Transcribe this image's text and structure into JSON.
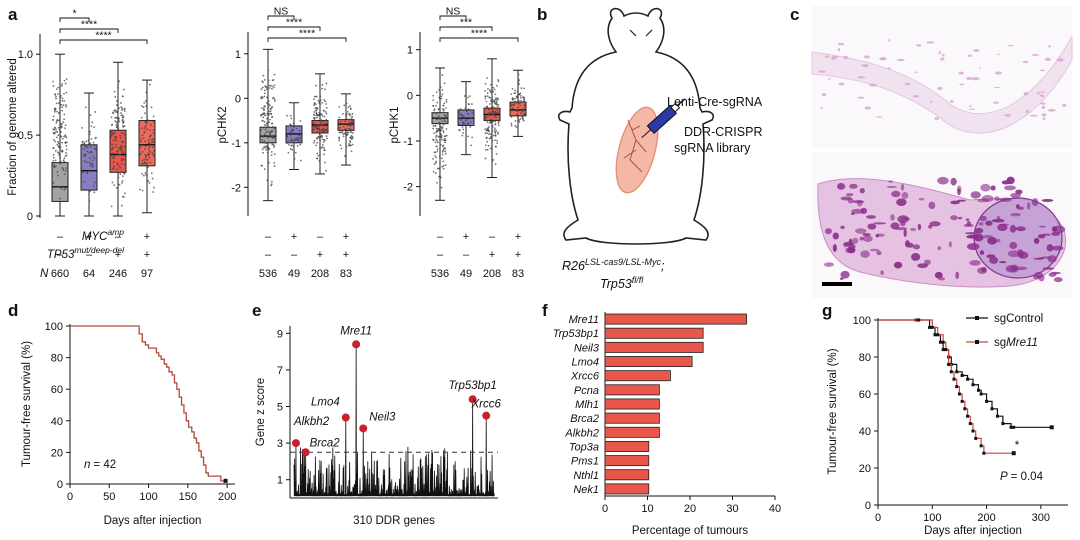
{
  "panels": {
    "a": "a",
    "b": "b",
    "c": "c",
    "d": "d",
    "e": "e",
    "f": "f",
    "g": "g"
  },
  "colors": {
    "box_gray": "#a3a3a3",
    "box_purple": "#8a7cc0",
    "box_red": "#e8574a",
    "box_lightred": "#ef6a5a",
    "survival_red": "#b04a3a",
    "bar_red": "#e8574a",
    "dot_red": "#c8202c",
    "mouse_fill": "#f5b7a6",
    "he_pink": "#d9a1d2",
    "he_dark": "#8a2c8a"
  },
  "panel_a": {
    "conditions": {
      "myc_label": "MYC",
      "myc_sup": "amp",
      "tp53_label": "TP53",
      "tp53_sup": "mut/deep-del",
      "n_label": "N",
      "plus": "+",
      "minus": "–"
    }
  },
  "panel_b": {
    "lenti_label": "Lenti-Cre-sgRNA",
    "library_line1": "DDR-CRISPR",
    "library_line2": "sgRNA library",
    "genotype_base1": "R26",
    "genotype_sup1": "LSL-cas9/LSL-Myc",
    "genotype_sep": ";",
    "genotype_base2": "Trp53",
    "genotype_sup2": "fl/fl"
  },
  "chart_data": [
    {
      "id": "a1",
      "type": "box",
      "ylabel": "Fraction of genome altered",
      "ylim": [
        0,
        1.1
      ],
      "yticks": [
        0,
        0.5,
        1.0
      ],
      "groups": [
        {
          "myc": "–",
          "tp53": "–",
          "n": "660",
          "median": 0.18,
          "q1": 0.09,
          "q3": 0.33,
          "whisker_low": 0.0,
          "whisker_high": 1.0
        },
        {
          "myc": "+",
          "tp53": "–",
          "n": "64",
          "median": 0.28,
          "q1": 0.16,
          "q3": 0.44,
          "whisker_low": 0.0,
          "whisker_high": 0.76
        },
        {
          "myc": "–",
          "tp53": "+",
          "n": "246",
          "median": 0.38,
          "q1": 0.27,
          "q3": 0.53,
          "whisker_low": 0.0,
          "whisker_high": 0.95
        },
        {
          "myc": "+",
          "tp53": "+",
          "n": "97",
          "median": 0.44,
          "q1": 0.31,
          "q3": 0.59,
          "whisker_low": 0.02,
          "whisker_high": 0.84
        }
      ],
      "comparisons": [
        {
          "from": 0,
          "to": 1,
          "label": "*"
        },
        {
          "from": 0,
          "to": 2,
          "label": "****"
        },
        {
          "from": 0,
          "to": 3,
          "label": "****"
        }
      ]
    },
    {
      "id": "a2",
      "type": "box",
      "ylabel": "pCHK2",
      "ylim": [
        -2.6,
        1.4
      ],
      "yticks": [
        -2,
        -1,
        0,
        1
      ],
      "groups": [
        {
          "myc": "–",
          "tp53": "–",
          "n": "536",
          "median": -0.85,
          "q1": -1.0,
          "q3": -0.65,
          "whisker_low": -2.3,
          "whisker_high": 1.1
        },
        {
          "myc": "+",
          "tp53": "–",
          "n": "49",
          "median": -0.8,
          "q1": -1.0,
          "q3": -0.62,
          "whisker_low": -1.6,
          "whisker_high": -0.1
        },
        {
          "myc": "–",
          "tp53": "+",
          "n": "208",
          "median": -0.6,
          "q1": -0.78,
          "q3": -0.5,
          "whisker_low": -1.7,
          "whisker_high": 0.55
        },
        {
          "myc": "+",
          "tp53": "+",
          "n": "83",
          "median": -0.58,
          "q1": -0.72,
          "q3": -0.48,
          "whisker_low": -1.5,
          "whisker_high": 0.1
        }
      ],
      "comparisons": [
        {
          "from": 0,
          "to": 1,
          "label": "NS"
        },
        {
          "from": 0,
          "to": 2,
          "label": "****"
        },
        {
          "from": 0,
          "to": 3,
          "label": "****"
        }
      ]
    },
    {
      "id": "a3",
      "type": "box",
      "ylabel": "pCHK1",
      "ylim": [
        -2.6,
        1.3
      ],
      "yticks": [
        -2,
        -1,
        0,
        1
      ],
      "groups": [
        {
          "myc": "–",
          "tp53": "–",
          "n": "536",
          "median": -0.5,
          "q1": -0.62,
          "q3": -0.38,
          "whisker_low": -2.3,
          "whisker_high": 0.6
        },
        {
          "myc": "+",
          "tp53": "–",
          "n": "49",
          "median": -0.5,
          "q1": -0.66,
          "q3": -0.32,
          "whisker_low": -1.3,
          "whisker_high": 0.3
        },
        {
          "myc": "–",
          "tp53": "+",
          "n": "208",
          "median": -0.42,
          "q1": -0.55,
          "q3": -0.28,
          "whisker_low": -1.8,
          "whisker_high": 0.8
        },
        {
          "myc": "+",
          "tp53": "+",
          "n": "83",
          "median": -0.32,
          "q1": -0.45,
          "q3": -0.15,
          "whisker_low": -0.9,
          "whisker_high": 0.55
        }
      ],
      "comparisons": [
        {
          "from": 0,
          "to": 1,
          "label": "NS"
        },
        {
          "from": 0,
          "to": 2,
          "label": "***"
        },
        {
          "from": 0,
          "to": 3,
          "label": "****"
        }
      ]
    },
    {
      "id": "d",
      "type": "line",
      "xlabel": "Days after injection",
      "ylabel": "Tumour-free survival (%)",
      "xlim": [
        0,
        210
      ],
      "xticks": [
        0,
        50,
        100,
        150,
        200
      ],
      "ylim": [
        0,
        100
      ],
      "yticks": [
        0,
        20,
        40,
        60,
        80,
        100
      ],
      "annotation_prefix": "n",
      "annotation_value": "= 42",
      "series": [
        {
          "x": [
            0,
            84,
            88,
            92,
            96,
            100,
            105,
            110,
            113,
            116,
            120,
            123,
            126,
            130,
            133,
            136,
            139,
            142,
            145,
            148,
            151,
            155,
            158,
            161,
            164,
            167,
            170,
            173,
            176,
            180,
            185,
            192,
            198
          ],
          "y": [
            100,
            100,
            95,
            90,
            88,
            86,
            86,
            83,
            81,
            79,
            76,
            74,
            71,
            69,
            64,
            60,
            55,
            50,
            45,
            40,
            36,
            33,
            29,
            26,
            21,
            17,
            12,
            7,
            5,
            5,
            5,
            2,
            2
          ],
          "censored_x": 198,
          "censored_y": 2
        }
      ]
    },
    {
      "id": "e",
      "type": "line",
      "xlabel": "310 DDR genes",
      "ylabel": "Gene z score",
      "ylim": [
        0,
        9.4
      ],
      "yticks": [
        1,
        3,
        5,
        7,
        9
      ],
      "threshold": 2.5,
      "n_genes": 310,
      "highlighted": [
        {
          "gene": "Mre11",
          "index": 96,
          "z": 8.4
        },
        {
          "gene": "Trp53bp1",
          "index": 276,
          "z": 5.4
        },
        {
          "gene": "Xrcc6",
          "index": 297,
          "z": 4.5
        },
        {
          "gene": "Lmo4",
          "index": 80,
          "z": 4.4
        },
        {
          "gene": "Neil3",
          "index": 107,
          "z": 3.8
        },
        {
          "gene": "Alkbh2",
          "index": 3,
          "z": 3.0
        },
        {
          "gene": "Brca2",
          "index": 18,
          "z": 2.5
        }
      ]
    },
    {
      "id": "f",
      "type": "bar",
      "xlabel": "Percentage of tumours",
      "xlim": [
        0,
        40
      ],
      "xticks": [
        0,
        10,
        20,
        30,
        40
      ],
      "categories": [
        "Mre11",
        "Trp53bp1",
        "Neil3",
        "Lmo4",
        "Xrcc6",
        "Pcna",
        "Mlh1",
        "Brca2",
        "Alkbh2",
        "Top3a",
        "Pms1",
        "Nthl1",
        "Nek1"
      ],
      "values": [
        33.3,
        23.1,
        23.1,
        20.5,
        15.4,
        12.8,
        12.8,
        12.8,
        12.8,
        10.3,
        10.3,
        10.3,
        10.3
      ]
    },
    {
      "id": "g",
      "type": "line",
      "xlabel": "Days after injection",
      "ylabel": "Tumour-free survival (%)",
      "xlim": [
        0,
        350
      ],
      "xticks": [
        0,
        100,
        200,
        300
      ],
      "ylim": [
        0,
        100
      ],
      "yticks": [
        0,
        20,
        40,
        60,
        80,
        100
      ],
      "pvalue_prefix": "P",
      "pvalue_value": "= 0.04",
      "star": "*",
      "legend_position": "top-right",
      "series": [
        {
          "name": "sgControl",
          "color": "#111111",
          "x": [
            0,
            70,
            95,
            105,
            115,
            120,
            130,
            135,
            145,
            155,
            165,
            175,
            185,
            190,
            200,
            210,
            220,
            230,
            245,
            250,
            320
          ],
          "y": [
            100,
            100,
            96,
            92,
            88,
            84,
            80,
            76,
            72,
            70,
            68,
            65,
            62,
            60,
            56,
            52,
            48,
            44,
            42,
            42,
            42
          ],
          "censored_x": 320,
          "censored_y": 42
        },
        {
          "name_prefix": "sg",
          "name_italic": "Mre11",
          "color": "#d1433b",
          "x": [
            0,
            75,
            100,
            110,
            120,
            125,
            130,
            135,
            140,
            145,
            150,
            155,
            160,
            165,
            170,
            175,
            180,
            190,
            195,
            250
          ],
          "y": [
            100,
            100,
            96,
            92,
            88,
            84,
            76,
            72,
            68,
            64,
            60,
            56,
            52,
            48,
            44,
            40,
            36,
            32,
            28,
            28
          ],
          "censored_x": 250,
          "censored_y": 28
        }
      ]
    }
  ]
}
